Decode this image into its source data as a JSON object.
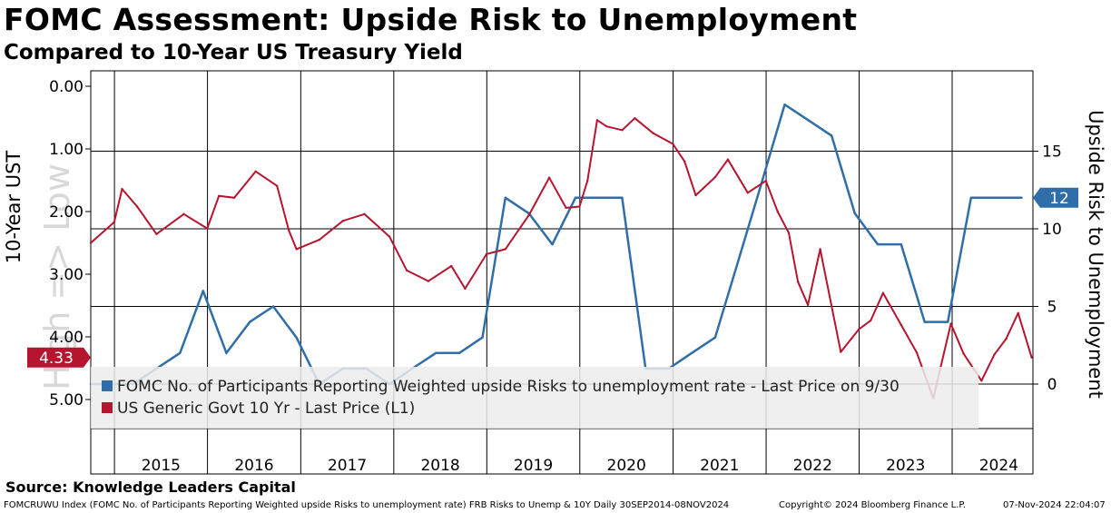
{
  "title": "FOMC Assessment: Upside Risk to Unemployment",
  "subtitle": "Compared to 10-Year US Treasury Yield",
  "source": "Source: Knowledge Leaders Capital",
  "footer": {
    "left": "FOMCRUWU Index (FOMC No. of Participants Reporting Weighted upside Risks to unemployment rate) FRB Risks to Unemp & 10Y  Daily 30SEP2014-08NOV2024",
    "center": "Copyright© 2024 Bloomberg Finance L.P.",
    "right": "07-Nov-2024 22:04:07"
  },
  "colors": {
    "fomc_series": "#2f6ea8",
    "treasury_series": "#b5152f",
    "background": "#ffffff",
    "legend_background": "#ececec",
    "watermark": "#c8c8c8"
  },
  "chart_data": {
    "type": "line",
    "xlabel": "",
    "x_ticks": [
      "2015",
      "2016",
      "2017",
      "2018",
      "2019",
      "2020",
      "2021",
      "2022",
      "2023",
      "2024"
    ],
    "left_axis": {
      "label": "10-Year UST",
      "inverted": true,
      "ylim": [
        0,
        5.5
      ],
      "ticks": [
        "0.00",
        "1.00",
        "2.00",
        "3.00",
        "4.00",
        "5.00"
      ],
      "watermark": "High => Low"
    },
    "right_axis": {
      "label": "Upside Risk to Unemployment",
      "ylim": [
        -3,
        20
      ],
      "ticks": [
        "0",
        "5",
        "10",
        "15"
      ]
    },
    "gridlines": "vertical at years, horizontal at right-axis ticks",
    "legend_position": "bottom-left",
    "last_value_tags": [
      {
        "axis": "left",
        "value": "4.33"
      },
      {
        "axis": "right",
        "value": "12"
      }
    ],
    "series": [
      {
        "name": "FOMC No. of Participants Reporting Weighted upside Risks to unemployment rate - Last Price on 9/30",
        "axis": "right",
        "step": false,
        "x": [
          "2014-09-30",
          "2015-03-15",
          "2015-06-15",
          "2015-09-15",
          "2015-12-15",
          "2016-03-15",
          "2016-06-15",
          "2016-09-15",
          "2016-12-15",
          "2017-03-15",
          "2017-06-15",
          "2017-09-15",
          "2017-12-15",
          "2018-03-15",
          "2018-06-15",
          "2018-09-15",
          "2018-12-15",
          "2019-03-15",
          "2019-06-15",
          "2019-09-15",
          "2019-12-15",
          "2020-06-15",
          "2020-09-15",
          "2020-12-15",
          "2021-03-15",
          "2021-06-15",
          "2021-09-15",
          "2021-12-15",
          "2022-03-15",
          "2022-06-15",
          "2022-09-15",
          "2022-12-15",
          "2023-03-15",
          "2023-06-15",
          "2023-09-15",
          "2023-12-15",
          "2024-03-15",
          "2024-06-15",
          "2024-09-30"
        ],
        "values": [
          0,
          0,
          1,
          2,
          6,
          2,
          4,
          5,
          3,
          0,
          1,
          1,
          0,
          1,
          2,
          2,
          3,
          12,
          11,
          9,
          12,
          12,
          1,
          1,
          2,
          3,
          8,
          13,
          18,
          17,
          16,
          11,
          9,
          9,
          4,
          4,
          12,
          12,
          12
        ]
      },
      {
        "name": "US Generic Govt 10 Yr - Last Price (L1)",
        "axis": "left",
        "x": [
          "2014-09-30",
          "2014-12-31",
          "2015-01-31",
          "2015-03-31",
          "2015-06-15",
          "2015-09-30",
          "2015-12-31",
          "2016-02-15",
          "2016-04-15",
          "2016-07-08",
          "2016-09-30",
          "2016-11-15",
          "2016-12-15",
          "2017-03-15",
          "2017-06-15",
          "2017-09-08",
          "2017-12-15",
          "2018-02-21",
          "2018-05-17",
          "2018-08-15",
          "2018-10-08",
          "2018-12-31",
          "2019-03-15",
          "2019-06-15",
          "2019-09-03",
          "2019-11-08",
          "2019-12-31",
          "2020-01-31",
          "2020-03-09",
          "2020-04-15",
          "2020-06-15",
          "2020-08-04",
          "2020-10-15",
          "2020-12-31",
          "2021-02-15",
          "2021-03-31",
          "2021-06-15",
          "2021-08-04",
          "2021-10-21",
          "2021-12-31",
          "2022-02-15",
          "2022-03-31",
          "2022-05-06",
          "2022-06-14",
          "2022-08-01",
          "2022-10-21",
          "2022-12-31",
          "2023-02-15",
          "2023-04-05",
          "2023-06-15",
          "2023-08-15",
          "2023-10-19",
          "2023-12-27",
          "2024-02-15",
          "2024-04-25",
          "2024-06-15",
          "2024-07-31",
          "2024-09-16",
          "2024-11-08"
        ],
        "values": [
          2.5,
          2.17,
          1.64,
          1.92,
          2.36,
          2.04,
          2.27,
          1.75,
          1.78,
          1.36,
          1.59,
          2.3,
          2.6,
          2.45,
          2.15,
          2.04,
          2.4,
          2.94,
          3.11,
          2.87,
          3.23,
          2.68,
          2.6,
          2.06,
          1.46,
          1.94,
          1.92,
          1.51,
          0.54,
          0.64,
          0.7,
          0.51,
          0.75,
          0.92,
          1.2,
          1.74,
          1.45,
          1.17,
          1.7,
          1.51,
          2.0,
          2.34,
          3.12,
          3.49,
          2.6,
          4.24,
          3.88,
          3.74,
          3.3,
          3.81,
          4.25,
          4.98,
          3.79,
          4.27,
          4.7,
          4.28,
          4.03,
          3.62,
          4.33
        ]
      }
    ]
  }
}
